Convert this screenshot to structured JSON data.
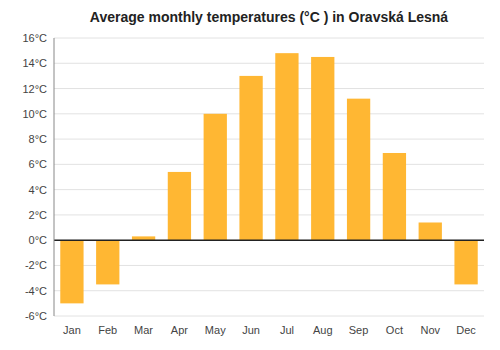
{
  "chart_data": {
    "type": "bar",
    "title": "Average monthly temperatures (°C ) in Oravská Lesná",
    "categories": [
      "Jan",
      "Feb",
      "Mar",
      "Apr",
      "May",
      "Jun",
      "Jul",
      "Aug",
      "Sep",
      "Oct",
      "Nov",
      "Dec"
    ],
    "values": [
      -5.0,
      -3.5,
      0.3,
      5.4,
      10.0,
      13.0,
      14.8,
      14.5,
      11.2,
      6.9,
      1.4,
      -3.5
    ],
    "color": "#FFB733",
    "ylim": [
      -6,
      16
    ],
    "yticks": [
      {
        "value": -6,
        "label": "-6°C"
      },
      {
        "value": -4,
        "label": "-4°C"
      },
      {
        "value": -2,
        "label": "-2°C"
      },
      {
        "value": 0,
        "label": "0°C"
      },
      {
        "value": 2,
        "label": "2°C"
      },
      {
        "value": 4,
        "label": "4°C"
      },
      {
        "value": 6,
        "label": "6°C"
      },
      {
        "value": 8,
        "label": "8°C"
      },
      {
        "value": 10,
        "label": "10°C"
      },
      {
        "value": 12,
        "label": "12°C"
      },
      {
        "value": 14,
        "label": "14°C"
      },
      {
        "value": 16,
        "label": "16°C"
      }
    ],
    "grid": true
  }
}
